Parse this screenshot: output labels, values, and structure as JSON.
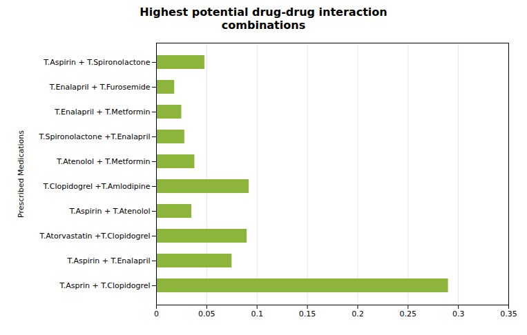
{
  "chart_data": {
    "type": "bar",
    "orientation": "horizontal",
    "title": "Highest potential drug-drug interaction\ncombinations",
    "ylabel": "Prescribed Medications",
    "categories": [
      "T.Asprin + T.Clopidogrel",
      "T.Aspirin + T.Enalapril",
      "T.Atorvastatin +T.Clopidogrel",
      "T.Aspirin + T.Atenolol",
      "T.Clopidogrel +T.Amlodipine",
      "T.Atenolol + T.Metformin",
      "T.Spironolactone +T.Enalapril",
      "T.Enalapril + T.Metformin",
      "T.Enalapril + T.Furosemide",
      "T.Aspirin + T.Spironolactone"
    ],
    "values": [
      0.29,
      0.075,
      0.09,
      0.035,
      0.092,
      0.038,
      0.028,
      0.025,
      0.018,
      0.048
    ],
    "color": "#8db53c",
    "xlim": [
      0,
      0.35
    ],
    "xticks": [
      0,
      0.05,
      0.1,
      0.15,
      0.2,
      0.25,
      0.3,
      0.35
    ],
    "grid": true
  }
}
